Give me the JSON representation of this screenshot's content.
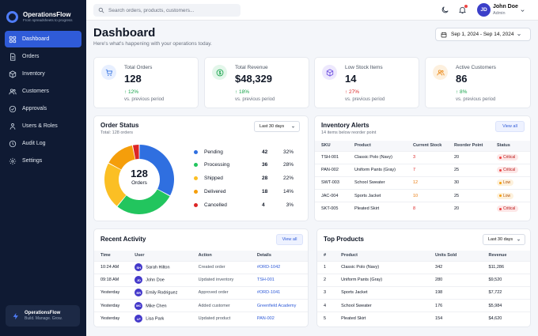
{
  "app": {
    "name": "OperationsFlow",
    "tagline": "From spreadsheets to progress"
  },
  "sidebar": {
    "items": [
      {
        "label": "Dashboard",
        "icon": "grid-icon",
        "active": true
      },
      {
        "label": "Orders",
        "icon": "document-icon"
      },
      {
        "label": "Inventory",
        "icon": "box-icon"
      },
      {
        "label": "Customers",
        "icon": "users-icon"
      },
      {
        "label": "Approvals",
        "icon": "check-circle-icon"
      },
      {
        "label": "Users & Roles",
        "icon": "user-group-icon"
      },
      {
        "label": "Audit Log",
        "icon": "clock-icon"
      },
      {
        "label": "Settings",
        "icon": "gear-icon"
      }
    ],
    "footer": {
      "name": "OperationsFlow",
      "sub": "Build. Manage. Grow."
    }
  },
  "topbar": {
    "search_placeholder": "Search orders, products, customers...",
    "user": {
      "initials": "JD",
      "name": "John Doe",
      "role": "Admin"
    }
  },
  "header": {
    "title": "Dashboard",
    "subtitle": "Here's what's happening with your operations today.",
    "date_range": "Sep 1, 2024 - Sep 14, 2024"
  },
  "stats": [
    {
      "label": "Total Orders",
      "value": "128",
      "change": "↑ 12%",
      "trend": "up",
      "note": "vs. previous period",
      "icon": "cart-icon",
      "color": "#2f6fe0",
      "bg": "#e7efff"
    },
    {
      "label": "Total Revenue",
      "value": "$48,329",
      "change": "↑ 18%",
      "trend": "up",
      "note": "vs. previous period",
      "icon": "dollar-icon",
      "color": "#16a34a",
      "bg": "#e3f6ea"
    },
    {
      "label": "Low Stock Items",
      "value": "14",
      "change": "↑ 27%",
      "trend": "down",
      "note": "vs. previous period",
      "icon": "box-icon",
      "color": "#6d4fe0",
      "bg": "#ede8fd"
    },
    {
      "label": "Active Customers",
      "value": "86",
      "change": "↑ 8%",
      "trend": "up",
      "note": "vs. previous period",
      "icon": "users-icon",
      "color": "#ea8a1a",
      "bg": "#fdf0de"
    }
  ],
  "order_status": {
    "title": "Order Status",
    "subtitle": "Total: 128 orders",
    "filter": "Last 30 days",
    "center_value": "128",
    "center_label": "Orders",
    "chart_data": {
      "type": "pie",
      "categories": [
        "Pending",
        "Processing",
        "Shipped",
        "Delivered",
        "Cancelled"
      ],
      "values": [
        42,
        36,
        28,
        18,
        4
      ],
      "percentages": [
        "32%",
        "28%",
        "22%",
        "14%",
        "3%"
      ],
      "colors": [
        "#2f6fe0",
        "#22c55e",
        "#fbbf24",
        "#f59e0b",
        "#dc2626"
      ]
    }
  },
  "inventory_alerts": {
    "title": "Inventory Alerts",
    "subtitle": "14 items below reorder point",
    "view_all": "View all",
    "columns": [
      "SKU",
      "Product",
      "Current Stock",
      "Reorder Point",
      "Status"
    ],
    "rows": [
      {
        "sku": "TSH-001",
        "product": "Classic Polo (Navy)",
        "stock": "3",
        "reorder": "20",
        "status": "Critical"
      },
      {
        "sku": "PAN-002",
        "product": "Uniform Pants (Gray)",
        "stock": "7",
        "reorder": "25",
        "status": "Critical"
      },
      {
        "sku": "SWT-003",
        "product": "School Sweater",
        "stock": "12",
        "reorder": "30",
        "status": "Low"
      },
      {
        "sku": "JAC-004",
        "product": "Sports Jacket",
        "stock": "10",
        "reorder": "25",
        "status": "Low"
      },
      {
        "sku": "SKT-005",
        "product": "Pleated Skirt",
        "stock": "8",
        "reorder": "20",
        "status": "Critical"
      }
    ]
  },
  "recent_activity": {
    "title": "Recent Activity",
    "view_all": "View all",
    "columns": [
      "Time",
      "User",
      "Action",
      "Details"
    ],
    "rows": [
      {
        "time": "10:24 AM",
        "initials": "SH",
        "user": "Sarah Hilton",
        "action": "Created order",
        "details": "#ORD-1042"
      },
      {
        "time": "09:18 AM",
        "initials": "JD",
        "user": "John Doe",
        "action": "Updated inventory",
        "details": "TSH-001"
      },
      {
        "time": "Yesterday",
        "initials": "ER",
        "user": "Emily Rodriguez",
        "action": "Approved order",
        "details": "#ORD-1041"
      },
      {
        "time": "Yesterday",
        "initials": "MC",
        "user": "Mike Chen",
        "action": "Added customer",
        "details": "Greenfield Academy"
      },
      {
        "time": "Yesterday",
        "initials": "LP",
        "user": "Lisa Park",
        "action": "Updated product",
        "details": "PAN-002"
      }
    ]
  },
  "top_products": {
    "title": "Top Products",
    "filter": "Last 30 days",
    "columns": [
      "#",
      "Product",
      "Units Sold",
      "Revenue"
    ],
    "rows": [
      {
        "rank": "1",
        "product": "Classic Polo (Navy)",
        "units": "342",
        "revenue": "$11,286"
      },
      {
        "rank": "2",
        "product": "Uniform Pants (Gray)",
        "units": "280",
        "revenue": "$9,520"
      },
      {
        "rank": "3",
        "product": "Sports Jacket",
        "units": "198",
        "revenue": "$7,722"
      },
      {
        "rank": "4",
        "product": "School Sweater",
        "units": "176",
        "revenue": "$5,984"
      },
      {
        "rank": "5",
        "product": "Pleated Skirt",
        "units": "154",
        "revenue": "$4,620"
      }
    ]
  }
}
